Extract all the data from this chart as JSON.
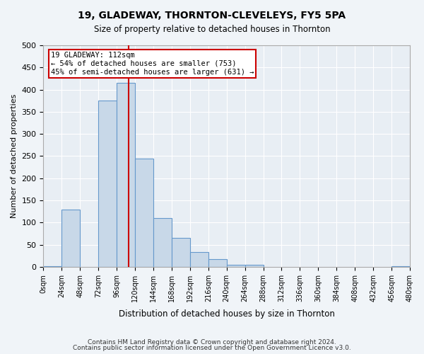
{
  "title": "19, GLADEWAY, THORNTON-CLEVELEYS, FY5 5PA",
  "subtitle": "Size of property relative to detached houses in Thornton",
  "xlabel": "Distribution of detached houses by size in Thornton",
  "ylabel": "Number of detached properties",
  "footer_line1": "Contains HM Land Registry data © Crown copyright and database right 2024.",
  "footer_line2": "Contains public sector information licensed under the Open Government Licence v3.0.",
  "bin_edges": [
    0,
    24,
    48,
    72,
    96,
    120,
    144,
    168,
    192,
    216,
    240,
    264,
    288,
    312,
    336,
    360,
    384,
    408,
    432,
    456,
    480
  ],
  "bar_values": [
    2,
    130,
    0,
    375,
    415,
    245,
    110,
    65,
    33,
    17,
    5,
    5,
    0,
    0,
    0,
    0,
    0,
    0,
    0,
    2
  ],
  "bar_color": "#c8d8e8",
  "bar_edgecolor": "#6699cc",
  "property_size": 112,
  "vline_color": "#cc0000",
  "annotation_text": "19 GLADEWAY: 112sqm\n← 54% of detached houses are smaller (753)\n45% of semi-detached houses are larger (631) →",
  "annotation_box_edgecolor": "#cc0000",
  "annotation_box_facecolor": "#ffffff",
  "ylim": [
    0,
    500
  ],
  "yticks": [
    0,
    50,
    100,
    150,
    200,
    250,
    300,
    350,
    400,
    450,
    500
  ],
  "bg_color": "#e8eef4",
  "grid_color": "#ffffff",
  "tick_labels": [
    "0sqm",
    "24sqm",
    "48sqm",
    "72sqm",
    "96sqm",
    "120sqm",
    "144sqm",
    "168sqm",
    "192sqm",
    "216sqm",
    "240sqm",
    "264sqm",
    "288sqm",
    "312sqm",
    "336sqm",
    "360sqm",
    "384sqm",
    "408sqm",
    "432sqm",
    "456sqm",
    "480sqm"
  ]
}
